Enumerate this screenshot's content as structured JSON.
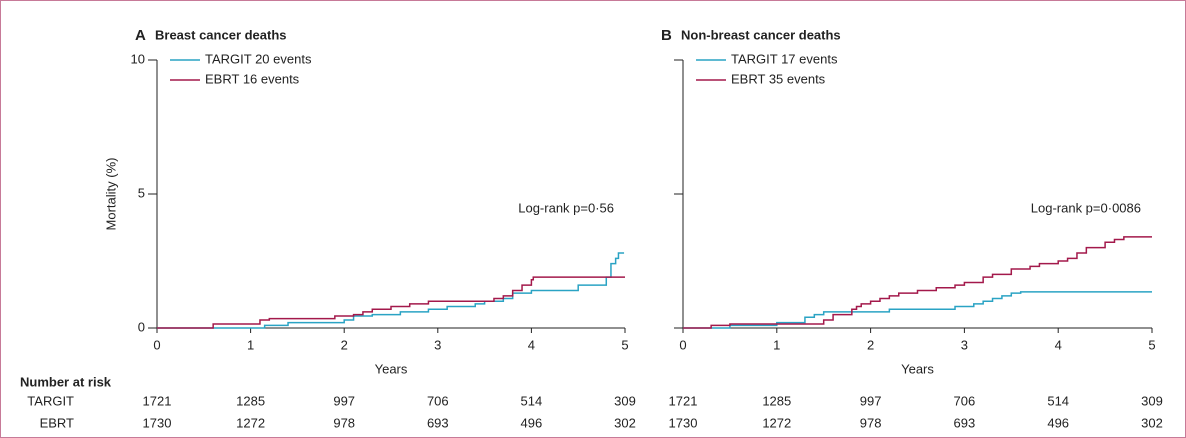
{
  "at_risk_title": "Number at risk",
  "chart_data": [
    {
      "type": "step",
      "panel": "A",
      "title": "Breast cancer deaths",
      "ylabel": "Mortality (%)",
      "xlabel": "Years",
      "xlim": [
        0,
        5
      ],
      "xticks": [
        0,
        1,
        2,
        3,
        4,
        5
      ],
      "ylim": [
        0,
        10
      ],
      "yticks": [
        0,
        5,
        10
      ],
      "annotation": "Log-rank p=0·56",
      "series": [
        {
          "name": "TARGIT 20 events",
          "color": "#2aa3c4",
          "x": [
            0,
            1.15,
            1.4,
            2.0,
            2.1,
            2.3,
            2.6,
            2.9,
            3.1,
            3.4,
            3.5,
            3.7,
            3.8,
            4.0,
            4.5,
            4.8,
            4.85,
            4.9,
            4.93,
            4.99
          ],
          "values": [
            0,
            0.1,
            0.2,
            0.3,
            0.45,
            0.5,
            0.6,
            0.7,
            0.8,
            0.9,
            1.0,
            1.1,
            1.3,
            1.4,
            1.6,
            1.9,
            2.4,
            2.6,
            2.8,
            2.8
          ]
        },
        {
          "name": "EBRT 16 events",
          "color": "#a3194b",
          "x": [
            0,
            0.6,
            1.1,
            1.2,
            1.9,
            2.1,
            2.2,
            2.3,
            2.5,
            2.7,
            2.9,
            3.6,
            3.7,
            3.8,
            3.9,
            4.0,
            4.02,
            5
          ],
          "values": [
            0,
            0.15,
            0.3,
            0.35,
            0.45,
            0.5,
            0.6,
            0.7,
            0.8,
            0.9,
            1.0,
            1.1,
            1.2,
            1.4,
            1.6,
            1.8,
            1.9,
            1.9
          ]
        }
      ],
      "at_risk": [
        {
          "name": "TARGIT",
          "values": [
            1721,
            1285,
            997,
            706,
            514,
            309
          ]
        },
        {
          "name": "EBRT",
          "values": [
            1730,
            1272,
            978,
            693,
            496,
            302
          ]
        }
      ]
    },
    {
      "type": "step",
      "panel": "B",
      "title": "Non-breast cancer deaths",
      "xlabel": "Years",
      "xlim": [
        0,
        5
      ],
      "xticks": [
        0,
        1,
        2,
        3,
        4,
        5
      ],
      "ylim": [
        0,
        10
      ],
      "yticks": [
        0,
        5,
        10
      ],
      "annotation": "Log-rank p=0·0086",
      "series": [
        {
          "name": "TARGIT 17 events",
          "color": "#2aa3c4",
          "x": [
            0,
            0.5,
            1.0,
            1.3,
            1.4,
            1.5,
            2.2,
            2.9,
            3.1,
            3.2,
            3.3,
            3.4,
            3.5,
            3.6,
            5
          ],
          "values": [
            0,
            0.1,
            0.2,
            0.4,
            0.5,
            0.6,
            0.7,
            0.8,
            0.9,
            1.0,
            1.1,
            1.2,
            1.3,
            1.35,
            1.35
          ]
        },
        {
          "name": "EBRT 35 events",
          "color": "#a3194b",
          "x": [
            0,
            0.3,
            0.5,
            1.5,
            1.6,
            1.8,
            1.85,
            1.9,
            2.0,
            2.1,
            2.2,
            2.3,
            2.5,
            2.7,
            2.9,
            3.0,
            3.2,
            3.3,
            3.5,
            3.7,
            3.8,
            4.0,
            4.1,
            4.2,
            4.3,
            4.5,
            4.6,
            4.7,
            5
          ],
          "values": [
            0,
            0.1,
            0.15,
            0.3,
            0.5,
            0.7,
            0.8,
            0.9,
            1.0,
            1.1,
            1.2,
            1.3,
            1.4,
            1.5,
            1.6,
            1.7,
            1.9,
            2.0,
            2.2,
            2.3,
            2.4,
            2.5,
            2.6,
            2.8,
            3.0,
            3.2,
            3.3,
            3.4,
            3.4
          ]
        }
      ],
      "at_risk": [
        {
          "name": "TARGIT",
          "values": [
            1721,
            1285,
            997,
            706,
            514,
            309
          ]
        },
        {
          "name": "EBRT",
          "values": [
            1730,
            1272,
            978,
            693,
            496,
            302
          ]
        }
      ]
    }
  ]
}
